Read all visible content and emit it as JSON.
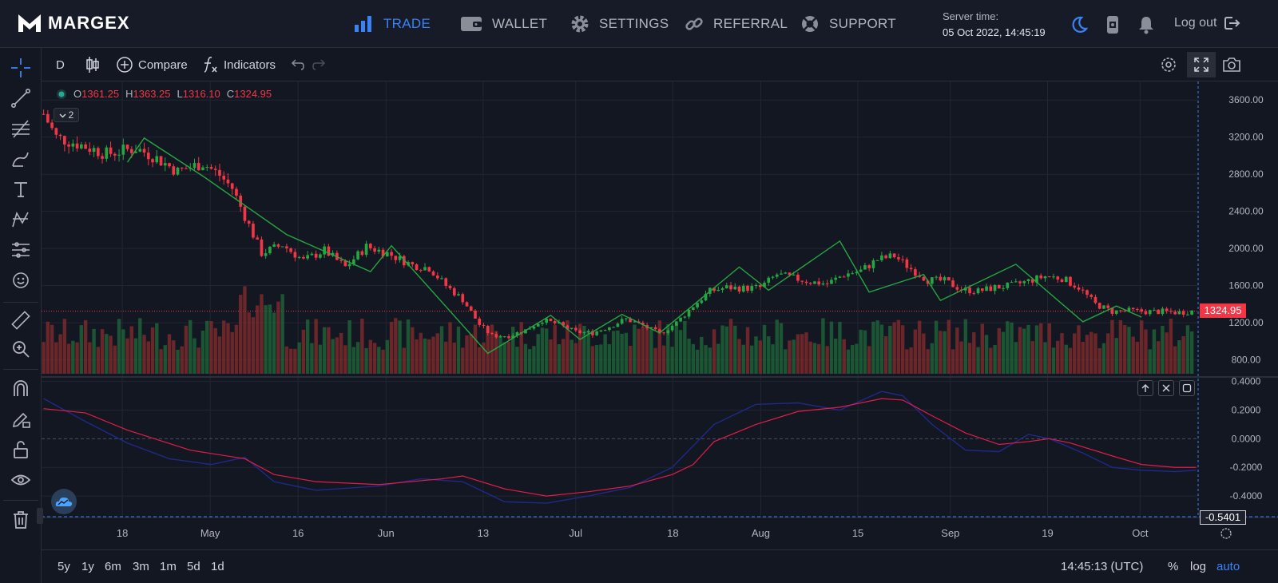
{
  "brand": "MARGEX",
  "nav": {
    "trade": "TRADE",
    "wallet": "WALLET",
    "settings": "SETTINGS",
    "referral": "REFERRAL",
    "support": "SUPPORT"
  },
  "server_time": {
    "label": "Server time:",
    "value": "05 Oct 2022, 14:45:19"
  },
  "logout": "Log out",
  "colors": {
    "accent": "#3b82f6",
    "up": "#26a641",
    "down": "#f23645",
    "signal": "#e11d48",
    "macd": "#1e2a8a"
  },
  "chart_toolbar": {
    "interval": "D",
    "compare": "Compare",
    "indicators": "Indicators"
  },
  "legend": {
    "o_label": "O",
    "o": "1361.25",
    "h_label": "H",
    "h": "1363.25",
    "l_label": "L",
    "l": "1316.10",
    "c_label": "C",
    "c": "1324.95"
  },
  "study_count": "2",
  "price_tag": "1324.95",
  "osc_tag": "-0.5401",
  "bottom": {
    "ranges": [
      "5y",
      "1y",
      "6m",
      "3m",
      "1m",
      "5d",
      "1d"
    ],
    "clock": "14:45:13 (UTC)",
    "percent": "%",
    "log": "log",
    "auto": "auto"
  },
  "chart_data": {
    "type": "candlestick",
    "x_labels": [
      "18",
      "May",
      "16",
      "Jun",
      "13",
      "Jul",
      "18",
      "Aug",
      "15",
      "Sep",
      "19",
      "Oct"
    ],
    "y_ticks": [
      "3600.00",
      "3200.00",
      "2800.00",
      "2400.00",
      "2000.00",
      "1600.00",
      "1200.00",
      "800.00"
    ],
    "ylim": [
      650,
      3800
    ],
    "close_path": [
      [
        0,
        3450
      ],
      [
        3,
        3200
      ],
      [
        8,
        3130
      ],
      [
        15,
        3020
      ],
      [
        22,
        3080
      ],
      [
        26,
        3000
      ],
      [
        32,
        2830
      ],
      [
        38,
        2920
      ],
      [
        42,
        2790
      ],
      [
        45,
        2650
      ],
      [
        48,
        2350
      ],
      [
        52,
        1950
      ],
      [
        57,
        2040
      ],
      [
        62,
        1870
      ],
      [
        67,
        1980
      ],
      [
        72,
        1800
      ],
      [
        77,
        2020
      ],
      [
        82,
        1950
      ],
      [
        88,
        1820
      ],
      [
        92,
        1790
      ],
      [
        96,
        1600
      ],
      [
        100,
        1450
      ],
      [
        104,
        1180
      ],
      [
        107,
        1060
      ],
      [
        111,
        1060
      ],
      [
        115,
        1120
      ],
      [
        119,
        1230
      ],
      [
        123,
        1180
      ],
      [
        127,
        1100
      ],
      [
        131,
        1090
      ],
      [
        135,
        1160
      ],
      [
        139,
        1240
      ],
      [
        143,
        1170
      ],
      [
        147,
        1080
      ],
      [
        151,
        1200
      ],
      [
        155,
        1380
      ],
      [
        159,
        1540
      ],
      [
        163,
        1580
      ],
      [
        167,
        1570
      ],
      [
        171,
        1580
      ],
      [
        175,
        1720
      ],
      [
        179,
        1680
      ],
      [
        183,
        1640
      ],
      [
        187,
        1620
      ],
      [
        191,
        1720
      ],
      [
        195,
        1760
      ],
      [
        199,
        1880
      ],
      [
        203,
        1920
      ],
      [
        207,
        1780
      ],
      [
        211,
        1660
      ],
      [
        215,
        1650
      ],
      [
        219,
        1560
      ],
      [
        223,
        1540
      ],
      [
        227,
        1580
      ],
      [
        231,
        1600
      ],
      [
        235,
        1650
      ],
      [
        239,
        1700
      ],
      [
        243,
        1680
      ],
      [
        247,
        1580
      ],
      [
        251,
        1400
      ],
      [
        255,
        1320
      ],
      [
        259,
        1330
      ],
      [
        263,
        1320
      ],
      [
        267,
        1320
      ],
      [
        271,
        1310
      ],
      [
        275,
        1330
      ]
    ],
    "zigzag": [
      [
        20,
        2930
      ],
      [
        24,
        3190
      ],
      [
        38,
        2780
      ],
      [
        58,
        2150
      ],
      [
        78,
        1750
      ],
      [
        83,
        2030
      ],
      [
        106,
        870
      ],
      [
        121,
        1280
      ],
      [
        128,
        1020
      ],
      [
        138,
        1290
      ],
      [
        147,
        1090
      ],
      [
        166,
        1800
      ],
      [
        173,
        1550
      ],
      [
        190,
        2080
      ],
      [
        197,
        1530
      ],
      [
        210,
        1720
      ],
      [
        214,
        1440
      ],
      [
        232,
        1830
      ],
      [
        248,
        1210
      ],
      [
        256,
        1380
      ],
      [
        262,
        1260
      ]
    ],
    "oscillator": {
      "ylim": [
        -0.55,
        0.42
      ],
      "y_ticks": [
        "0.4000",
        "0.2000",
        "0.0000",
        "-0.2000",
        "-0.4000"
      ],
      "signal": [
        [
          0,
          0.21
        ],
        [
          10,
          0.18
        ],
        [
          20,
          0.06
        ],
        [
          35,
          -0.08
        ],
        [
          48,
          -0.14
        ],
        [
          55,
          -0.25
        ],
        [
          65,
          -0.3
        ],
        [
          80,
          -0.32
        ],
        [
          95,
          -0.28
        ],
        [
          100,
          -0.26
        ],
        [
          110,
          -0.35
        ],
        [
          120,
          -0.4
        ],
        [
          130,
          -0.37
        ],
        [
          140,
          -0.33
        ],
        [
          150,
          -0.25
        ],
        [
          155,
          -0.18
        ],
        [
          160,
          -0.02
        ],
        [
          170,
          0.1
        ],
        [
          180,
          0.19
        ],
        [
          190,
          0.22
        ],
        [
          200,
          0.28
        ],
        [
          205,
          0.27
        ],
        [
          212,
          0.16
        ],
        [
          220,
          0.04
        ],
        [
          228,
          -0.04
        ],
        [
          235,
          -0.02
        ],
        [
          240,
          0.0
        ],
        [
          245,
          -0.03
        ],
        [
          255,
          -0.12
        ],
        [
          262,
          -0.18
        ],
        [
          270,
          -0.2
        ],
        [
          275,
          -0.2
        ]
      ],
      "macd": [
        [
          0,
          0.28
        ],
        [
          10,
          0.12
        ],
        [
          20,
          -0.03
        ],
        [
          30,
          -0.14
        ],
        [
          40,
          -0.18
        ],
        [
          48,
          -0.13
        ],
        [
          55,
          -0.3
        ],
        [
          65,
          -0.36
        ],
        [
          80,
          -0.33
        ],
        [
          90,
          -0.28
        ],
        [
          100,
          -0.3
        ],
        [
          110,
          -0.44
        ],
        [
          120,
          -0.45
        ],
        [
          130,
          -0.4
        ],
        [
          140,
          -0.34
        ],
        [
          150,
          -0.2
        ],
        [
          155,
          -0.05
        ],
        [
          160,
          0.1
        ],
        [
          170,
          0.24
        ],
        [
          180,
          0.25
        ],
        [
          190,
          0.2
        ],
        [
          200,
          0.33
        ],
        [
          205,
          0.3
        ],
        [
          212,
          0.1
        ],
        [
          220,
          -0.08
        ],
        [
          228,
          -0.09
        ],
        [
          235,
          0.03
        ],
        [
          240,
          0.0
        ],
        [
          248,
          -0.1
        ],
        [
          255,
          -0.2
        ],
        [
          262,
          -0.22
        ],
        [
          270,
          -0.23
        ],
        [
          275,
          -0.22
        ]
      ]
    }
  }
}
